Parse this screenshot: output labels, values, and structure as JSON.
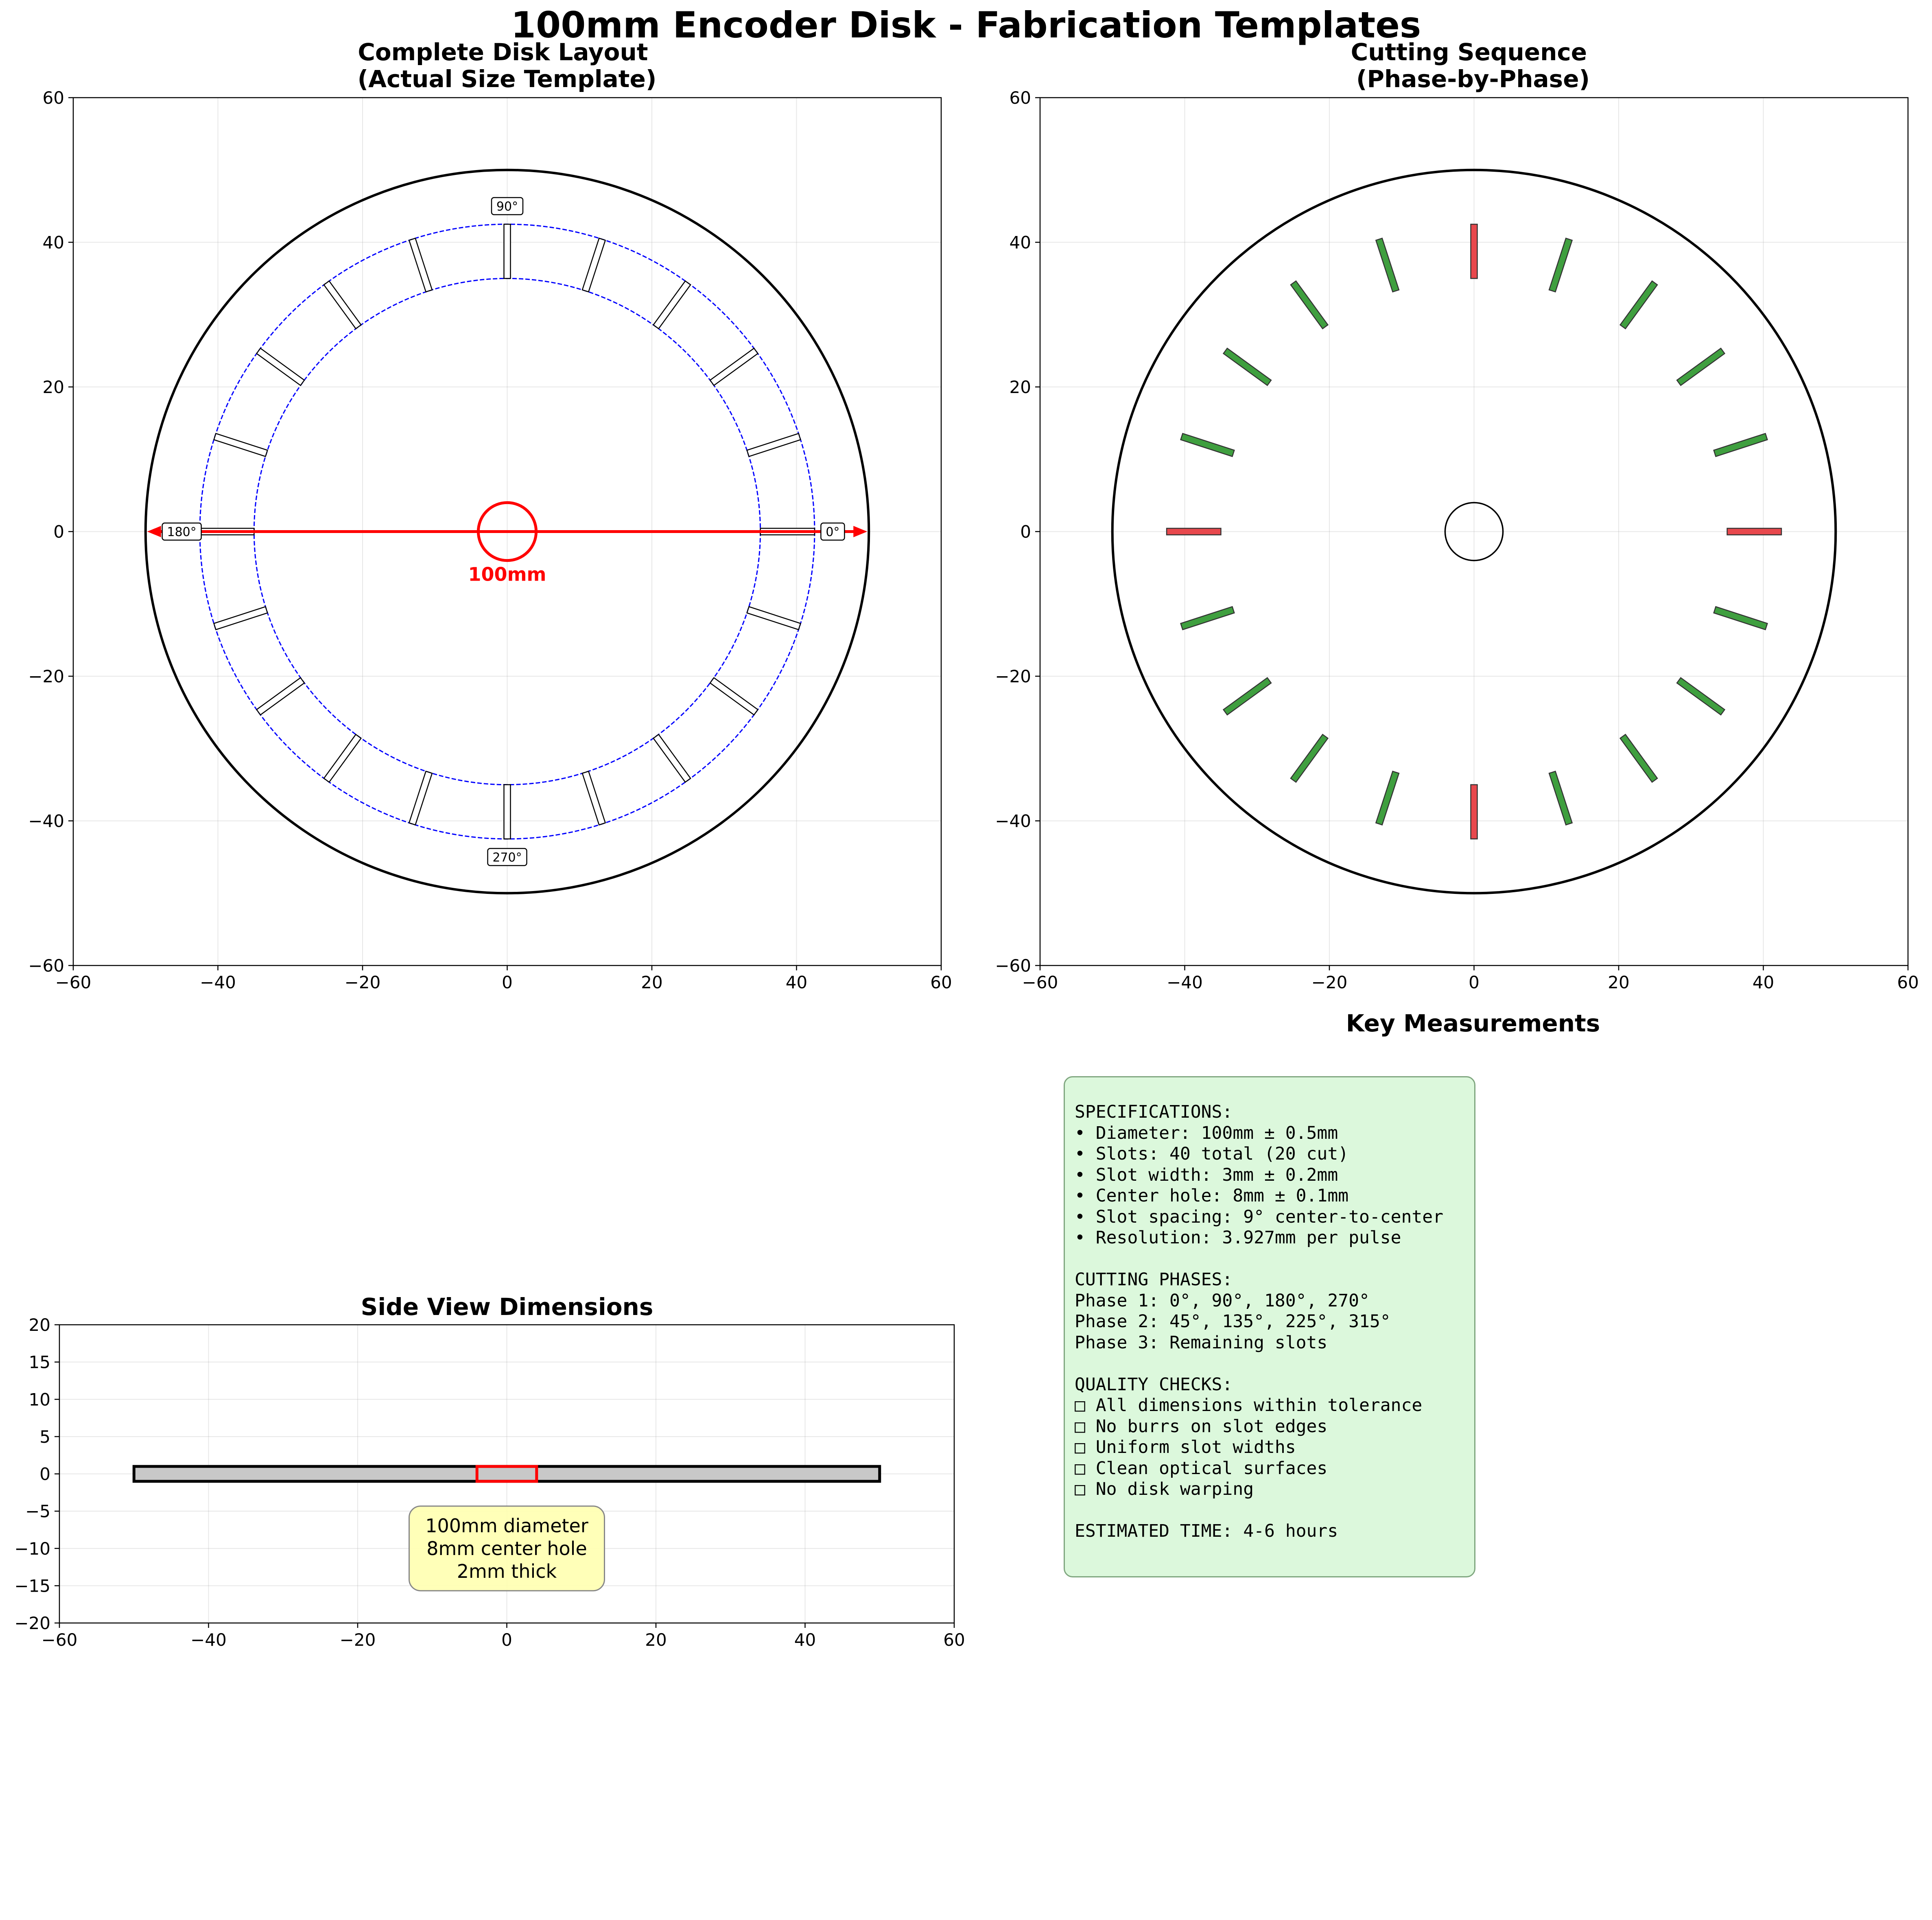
{
  "figure": {
    "suptitle": "100mm Encoder Disk - Fabrication Templates"
  },
  "chart_data": [
    {
      "id": "complete-disk-layout",
      "type": "scatter",
      "title": "Complete Disk Layout\n(Actual Size Template)",
      "xlabel": "",
      "ylabel": "",
      "xlim": [
        -60,
        60
      ],
      "ylim": [
        -60,
        60
      ],
      "xticks": [
        -60,
        -40,
        -20,
        0,
        20,
        40,
        60
      ],
      "yticks": [
        -60,
        -40,
        -20,
        0,
        20,
        40,
        60
      ],
      "grid": true,
      "disk_radius": 50,
      "center_hole_radius": 4,
      "slot_ring_inner_radius": 35,
      "slot_ring_outer_radius": 42.5,
      "slot_count": 20,
      "slot_spacing_deg": 18,
      "slot_width": 0.9,
      "angle_labels": [
        {
          "text": "0°",
          "angle": 0
        },
        {
          "text": "90°",
          "angle": 90
        },
        {
          "text": "180°",
          "angle": 180
        },
        {
          "text": "270°",
          "angle": 270
        }
      ],
      "diameter_label": "100mm",
      "colors": {
        "disk": "#000000",
        "ring": "#0000ff",
        "hole": "#ff0000",
        "arrow": "#ff0000",
        "slot_fill": "#ffffff",
        "slot_edge": "#000000"
      }
    },
    {
      "id": "cutting-sequence",
      "type": "scatter",
      "title": "Cutting Sequence\n(Phase-by-Phase)",
      "xlabel": "",
      "ylabel": "",
      "xlim": [
        -60,
        60
      ],
      "ylim": [
        -60,
        60
      ],
      "xticks": [
        -60,
        -40,
        -20,
        0,
        20,
        40,
        60
      ],
      "yticks": [
        -60,
        -40,
        -20,
        0,
        20,
        40,
        60
      ],
      "grid": true,
      "disk_radius": 50,
      "center_hole_radius": 4,
      "slot_inner_radius": 35,
      "slot_outer_radius": 42.5,
      "slot_width": 0.9,
      "phase1_angles": [
        0,
        90,
        180,
        270
      ],
      "phase3_angles": [
        18,
        36,
        54,
        72,
        108,
        126,
        144,
        162,
        198,
        216,
        234,
        252,
        288,
        306,
        324,
        342
      ],
      "colors": {
        "phase1": "#e8484d",
        "phase3": "#3f9f3f",
        "edge": "#333333",
        "disk": "#000000"
      }
    },
    {
      "id": "side-view-dimensions",
      "type": "scatter",
      "title": "Side View Dimensions",
      "xlabel": "",
      "ylabel": "",
      "xlim": [
        -60,
        60
      ],
      "ylim": [
        -20,
        20
      ],
      "xticks": [
        -60,
        -40,
        -20,
        0,
        20,
        40,
        60
      ],
      "yticks": [
        -20,
        -15,
        -10,
        -5,
        0,
        5,
        10,
        15,
        20
      ],
      "grid": true,
      "disk_x": [
        -50,
        50
      ],
      "disk_y": [
        -1,
        1
      ],
      "hole_x": [
        -4,
        4
      ],
      "annotation": "100mm diameter\n8mm center hole\n2mm thick",
      "annotation_x": 0,
      "annotation_y": -10,
      "colors": {
        "disk_fill": "#c8c8c8",
        "disk_edge": "#000000",
        "hole_edge": "#ff0000",
        "note_fill": "#ffffb0"
      }
    }
  ],
  "measurements": {
    "title": "Key Measurements",
    "text": "SPECIFICATIONS:\n• Diameter: 100mm ± 0.5mm\n• Slots: 40 total (20 cut)\n• Slot width: 3mm ± 0.2mm\n• Center hole: 8mm ± 0.1mm\n• Slot spacing: 9° center-to-center\n• Resolution: 3.927mm per pulse\n\nCUTTING PHASES:\nPhase 1: 0°, 90°, 180°, 270°\nPhase 2: 45°, 135°, 225°, 315°\nPhase 3: Remaining slots\n\nQUALITY CHECKS:\n□ All dimensions within tolerance\n□ No burrs on slot edges\n□ Uniform slot widths\n□ Clean optical surfaces\n□ No disk warping\n\nESTIMATED TIME: 4-6 hours"
  }
}
